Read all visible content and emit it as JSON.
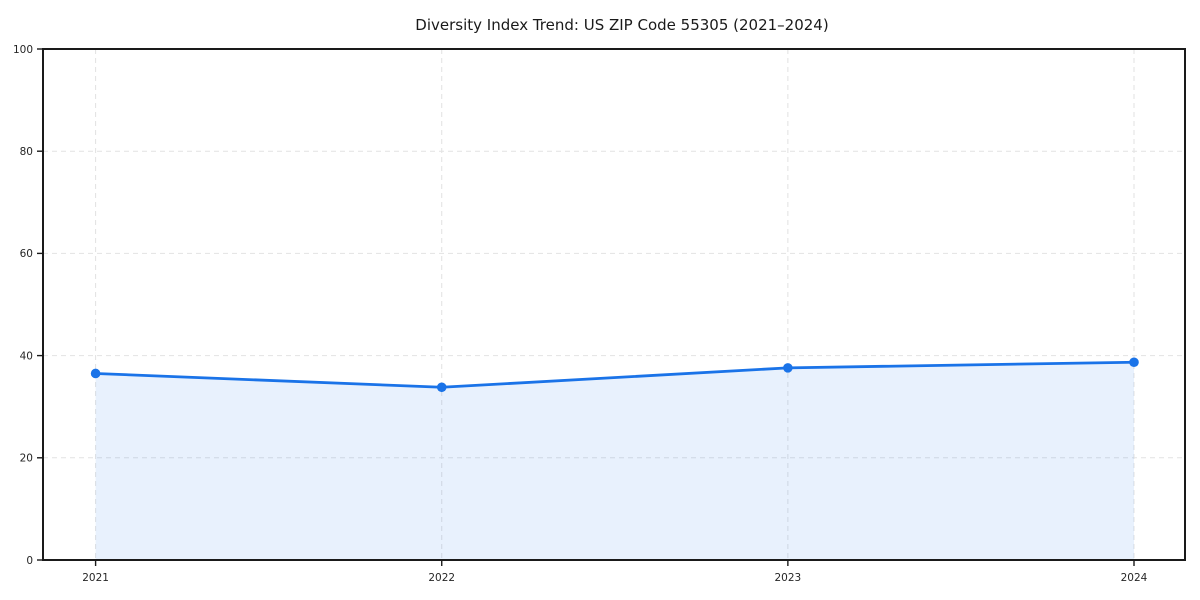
{
  "chart_data": {
    "type": "area",
    "title": "Diversity Index Trend: US ZIP Code 55305 (2021–2024)",
    "x": [
      "2021",
      "2022",
      "2023",
      "2024"
    ],
    "series": [
      {
        "name": "Diversity Index",
        "values": [
          36.5,
          33.8,
          37.6,
          38.7
        ]
      }
    ],
    "xlabel": "",
    "ylabel": "",
    "ylim": [
      0,
      100
    ],
    "yticks": [
      0,
      20,
      40,
      60,
      80,
      100
    ],
    "grid": true,
    "grid_style": "dashed",
    "legend": "none",
    "marker": "circle",
    "colors": {
      "line": "#1a73e8",
      "marker": "#1a73e8",
      "fill": "rgba(26,115,232,0.10)",
      "grid": "#e2e2e2",
      "spine": "#1a1a1a",
      "text": "#1a1a1a",
      "background": "#ffffff"
    }
  }
}
